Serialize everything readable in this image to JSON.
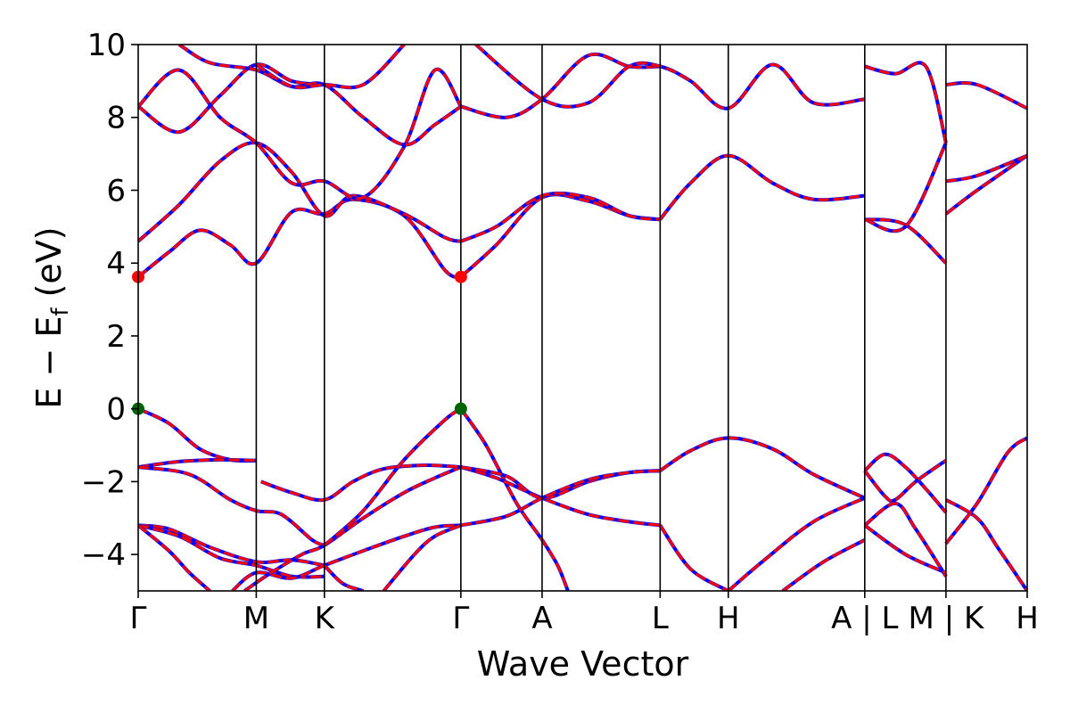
{
  "chart_data": {
    "type": "line",
    "title": "",
    "xlabel": "Wave Vector",
    "ylabel": "E − E",
    "ylabel_sub": "f",
    "ylabel_unit": " (eV)",
    "ylim": [
      -5,
      10
    ],
    "yticks": [
      -4,
      -2,
      0,
      2,
      4,
      6,
      8,
      10
    ],
    "ytick_labels": [
      "−4",
      "−2",
      "0",
      "2",
      "4",
      "6",
      "8",
      "10"
    ],
    "k_path": [
      {
        "label": "Γ",
        "k": 0.0
      },
      {
        "label": "M",
        "k": 0.577
      },
      {
        "label": "K",
        "k": 0.91
      },
      {
        "label": "Γ",
        "k": 1.577
      },
      {
        "label": "A",
        "k": 1.974
      },
      {
        "label": "L",
        "k": 2.551
      },
      {
        "label": "H",
        "k": 2.884
      },
      {
        "label": "A | L",
        "k": 3.551
      },
      {
        "label": "M | K",
        "k": 3.948
      },
      {
        "label": "H",
        "k": 4.345
      }
    ],
    "colors": {
      "band_red": "#ff0000",
      "band_blue": "#0000ff",
      "cbm": "#ff0000",
      "vbm": "#006400"
    },
    "markers": [
      {
        "type": "cbm",
        "k": 0.0,
        "E": 3.62
      },
      {
        "type": "cbm",
        "k": 1.577,
        "E": 3.62
      },
      {
        "type": "vbm",
        "k": 0.0,
        "E": 0.0
      },
      {
        "type": "vbm",
        "k": 1.577,
        "E": 0.0
      }
    ],
    "series": [
      {
        "points": [
          [
            0,
            0
          ],
          [
            0.15,
            -0.4
          ],
          [
            0.3,
            -1.1
          ],
          [
            0.45,
            -1.4
          ],
          [
            0.577,
            -1.42
          ]
        ]
      },
      {
        "points": [
          [
            0,
            -1.6
          ],
          [
            0.2,
            -1.45
          ],
          [
            0.4,
            -1.4
          ],
          [
            0.577,
            -1.42
          ]
        ]
      },
      {
        "points": [
          [
            0,
            -1.6
          ],
          [
            0.25,
            -1.8
          ],
          [
            0.45,
            -2.5
          ],
          [
            0.577,
            -2.8
          ],
          [
            0.7,
            -2.9
          ],
          [
            0.85,
            -3.6
          ],
          [
            0.91,
            -3.75
          ]
        ]
      },
      {
        "points": [
          [
            0,
            -3.2
          ],
          [
            0.15,
            -3.3
          ],
          [
            0.35,
            -3.8
          ],
          [
            0.577,
            -4.2
          ],
          [
            0.75,
            -4.15
          ],
          [
            0.91,
            -4.3
          ]
        ]
      },
      {
        "points": [
          [
            0,
            -3.2
          ],
          [
            0.2,
            -3.5
          ],
          [
            0.4,
            -4.1
          ],
          [
            0.577,
            -4.3
          ],
          [
            0.75,
            -4.6
          ],
          [
            0.91,
            -4.6
          ]
        ]
      },
      {
        "points": [
          [
            0,
            -3.2
          ],
          [
            0.15,
            -3.9
          ],
          [
            0.25,
            -4.5
          ],
          [
            0.35,
            -5.0
          ]
        ]
      },
      {
        "points": [
          [
            0.46,
            -5.0
          ],
          [
            0.577,
            -4.5
          ],
          [
            0.75,
            -4.65
          ],
          [
            0.91,
            -4.3
          ],
          [
            1.1,
            -3.9
          ],
          [
            1.3,
            -3.5
          ],
          [
            1.45,
            -3.25
          ],
          [
            1.577,
            -3.2
          ]
        ]
      },
      {
        "points": [
          [
            0.52,
            -5.0
          ],
          [
            0.65,
            -4.5
          ],
          [
            0.8,
            -4.0
          ],
          [
            0.91,
            -3.75
          ],
          [
            1.1,
            -3.0
          ],
          [
            1.3,
            -2.3
          ],
          [
            1.45,
            -1.9
          ],
          [
            1.577,
            -1.6
          ]
        ]
      },
      {
        "points": [
          [
            0.6,
            -2.0
          ],
          [
            0.75,
            -2.3
          ],
          [
            0.91,
            -2.5
          ],
          [
            1.05,
            -2.0
          ],
          [
            1.2,
            -1.65
          ],
          [
            1.4,
            -1.55
          ],
          [
            1.577,
            -1.6
          ]
        ]
      },
      {
        "points": [
          [
            0.91,
            -3.75
          ],
          [
            1.1,
            -2.8
          ],
          [
            1.3,
            -1.4
          ],
          [
            1.5,
            -0.3
          ],
          [
            1.577,
            0.0
          ]
        ]
      },
      {
        "points": [
          [
            0.91,
            -4.3
          ],
          [
            1.0,
            -4.8
          ],
          [
            1.1,
            -5.0
          ]
        ]
      },
      {
        "points": [
          [
            1.2,
            -5.0
          ],
          [
            1.35,
            -4.0
          ],
          [
            1.45,
            -3.5
          ],
          [
            1.577,
            -3.2
          ]
        ]
      },
      {
        "points": [
          [
            1.577,
            0.0
          ],
          [
            1.7,
            -1.0
          ],
          [
            1.85,
            -2.6
          ],
          [
            1.974,
            -3.6
          ],
          [
            2.05,
            -4.3
          ],
          [
            2.1,
            -5.0
          ]
        ]
      },
      {
        "points": [
          [
            1.577,
            -1.6
          ],
          [
            1.75,
            -1.9
          ],
          [
            1.974,
            -2.45
          ],
          [
            2.2,
            -2.9
          ],
          [
            2.4,
            -3.1
          ],
          [
            2.551,
            -3.2
          ]
        ]
      },
      {
        "points": [
          [
            1.577,
            -1.6
          ],
          [
            1.8,
            -1.85
          ],
          [
            1.974,
            -2.45
          ],
          [
            2.2,
            -2.0
          ],
          [
            2.4,
            -1.75
          ],
          [
            2.551,
            -1.7
          ]
        ]
      },
      {
        "points": [
          [
            1.577,
            -3.2
          ],
          [
            1.8,
            -2.95
          ],
          [
            1.974,
            -2.45
          ],
          [
            2.2,
            -1.95
          ],
          [
            2.4,
            -1.75
          ],
          [
            2.551,
            -1.7
          ]
        ]
      },
      {
        "points": [
          [
            2.551,
            -1.7
          ],
          [
            2.7,
            -1.15
          ],
          [
            2.884,
            -0.8
          ],
          [
            3.1,
            -1.1
          ],
          [
            3.3,
            -1.8
          ],
          [
            3.551,
            -2.45
          ]
        ]
      },
      {
        "points": [
          [
            2.551,
            -3.2
          ],
          [
            2.7,
            -4.4
          ],
          [
            2.884,
            -5.0
          ]
        ]
      },
      {
        "points": [
          [
            2.884,
            -5.0
          ],
          [
            3.05,
            -4.2
          ],
          [
            3.3,
            -3.1
          ],
          [
            3.551,
            -2.45
          ]
        ]
      },
      {
        "points": [
          [
            3.15,
            -5.0
          ],
          [
            3.35,
            -4.2
          ],
          [
            3.551,
            -3.6
          ]
        ]
      },
      {
        "points": [
          [
            3.551,
            -1.7
          ],
          [
            3.65,
            -1.25
          ],
          [
            3.75,
            -1.6
          ],
          [
            3.85,
            -2.2
          ],
          [
            3.948,
            -2.85
          ]
        ]
      },
      {
        "points": [
          [
            3.551,
            -1.7
          ],
          [
            3.65,
            -2.4
          ],
          [
            3.7,
            -2.5
          ],
          [
            3.8,
            -2.0
          ],
          [
            3.948,
            -1.42
          ]
        ]
      },
      {
        "points": [
          [
            3.551,
            -3.2
          ],
          [
            3.7,
            -2.6
          ],
          [
            3.8,
            -3.3
          ],
          [
            3.948,
            -4.6
          ]
        ]
      },
      {
        "points": [
          [
            3.551,
            -3.2
          ],
          [
            3.75,
            -4.0
          ],
          [
            3.948,
            -4.5
          ]
        ]
      },
      {
        "points": [
          [
            3.948,
            -2.5
          ],
          [
            4.1,
            -3.0
          ],
          [
            4.2,
            -3.8
          ],
          [
            4.345,
            -5.0
          ]
        ]
      },
      {
        "points": [
          [
            3.948,
            -3.7
          ],
          [
            4.1,
            -2.6
          ],
          [
            4.25,
            -1.2
          ],
          [
            4.345,
            -0.8
          ]
        ]
      },
      {
        "points": [
          [
            0,
            3.62
          ],
          [
            0.15,
            4.3
          ],
          [
            0.3,
            4.9
          ],
          [
            0.45,
            4.5
          ],
          [
            0.577,
            4.0
          ],
          [
            0.75,
            5.4
          ],
          [
            0.91,
            5.35
          ],
          [
            1.05,
            5.75
          ],
          [
            1.3,
            5.3
          ],
          [
            1.5,
            3.8
          ],
          [
            1.577,
            3.62
          ]
        ]
      },
      {
        "points": [
          [
            0,
            4.6
          ],
          [
            0.2,
            5.6
          ],
          [
            0.4,
            6.8
          ],
          [
            0.577,
            7.3
          ],
          [
            0.75,
            6.5
          ],
          [
            0.91,
            5.3
          ],
          [
            1.05,
            5.85
          ],
          [
            1.3,
            5.35
          ],
          [
            1.5,
            4.7
          ],
          [
            1.577,
            4.6
          ]
        ]
      },
      {
        "points": [
          [
            1.577,
            3.62
          ],
          [
            1.75,
            4.5
          ],
          [
            1.974,
            5.8
          ],
          [
            2.2,
            5.7
          ],
          [
            2.4,
            5.3
          ],
          [
            2.551,
            5.2
          ]
        ]
      },
      {
        "points": [
          [
            1.577,
            4.6
          ],
          [
            1.75,
            5.0
          ],
          [
            1.974,
            5.85
          ],
          [
            2.2,
            5.8
          ],
          [
            2.4,
            5.3
          ],
          [
            2.551,
            5.2
          ]
        ]
      },
      {
        "points": [
          [
            2.551,
            5.2
          ],
          [
            2.7,
            6.2
          ],
          [
            2.884,
            6.95
          ],
          [
            3.1,
            6.2
          ],
          [
            3.3,
            5.75
          ],
          [
            3.551,
            5.85
          ]
        ]
      },
      {
        "points": [
          [
            3.551,
            5.2
          ],
          [
            3.75,
            5.05
          ],
          [
            3.948,
            4.0
          ]
        ]
      },
      {
        "points": [
          [
            3.551,
            5.2
          ],
          [
            3.75,
            5.0
          ],
          [
            3.948,
            7.3
          ]
        ]
      },
      {
        "points": [
          [
            3.948,
            5.35
          ],
          [
            4.1,
            6.0
          ],
          [
            4.345,
            6.95
          ]
        ]
      },
      {
        "points": [
          [
            3.948,
            6.25
          ],
          [
            4.1,
            6.4
          ],
          [
            4.345,
            6.95
          ]
        ]
      },
      {
        "points": [
          [
            0,
            8.3
          ],
          [
            0.2,
            7.6
          ],
          [
            0.4,
            8.6
          ],
          [
            0.577,
            9.45
          ],
          [
            0.75,
            9.0
          ],
          [
            0.91,
            8.9
          ]
        ]
      },
      {
        "points": [
          [
            0,
            8.3
          ],
          [
            0.2,
            9.3
          ],
          [
            0.4,
            8.0
          ],
          [
            0.577,
            7.3
          ],
          [
            0.75,
            6.2
          ],
          [
            0.91,
            6.25
          ],
          [
            1.1,
            5.8
          ],
          [
            1.3,
            7.2
          ],
          [
            1.45,
            9.3
          ],
          [
            1.577,
            8.3
          ]
        ]
      },
      {
        "points": [
          [
            0.2,
            10
          ],
          [
            0.35,
            9.5
          ],
          [
            0.577,
            9.3
          ],
          [
            0.75,
            8.85
          ],
          [
            0.91,
            8.9
          ],
          [
            1.1,
            8.0
          ],
          [
            1.3,
            7.25
          ],
          [
            1.45,
            7.8
          ],
          [
            1.577,
            8.3
          ]
        ]
      },
      {
        "points": [
          [
            0.577,
            9.45
          ],
          [
            0.75,
            8.85
          ],
          [
            0.91,
            8.9
          ],
          [
            1.1,
            8.9
          ],
          [
            1.3,
            10
          ]
        ]
      },
      {
        "points": [
          [
            1.577,
            8.3
          ],
          [
            1.8,
            8.0
          ],
          [
            1.974,
            8.5
          ],
          [
            2.2,
            9.7
          ],
          [
            2.4,
            9.4
          ],
          [
            2.551,
            9.4
          ]
        ]
      },
      {
        "points": [
          [
            1.65,
            10
          ],
          [
            1.974,
            8.5
          ],
          [
            2.2,
            8.4
          ],
          [
            2.4,
            9.4
          ],
          [
            2.551,
            9.4
          ],
          [
            2.7,
            9.0
          ],
          [
            2.884,
            8.25
          ],
          [
            3.1,
            9.45
          ],
          [
            3.3,
            8.4
          ],
          [
            3.551,
            8.5
          ]
        ]
      },
      {
        "points": [
          [
            3.551,
            9.4
          ],
          [
            3.7,
            9.2
          ],
          [
            3.85,
            9.4
          ],
          [
            3.948,
            7.3
          ]
        ]
      },
      {
        "points": [
          [
            3.948,
            8.9
          ],
          [
            4.1,
            8.9
          ],
          [
            4.345,
            8.25
          ]
        ]
      }
    ]
  }
}
